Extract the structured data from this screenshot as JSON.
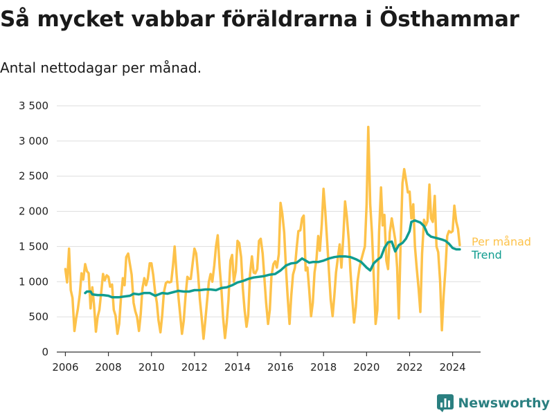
{
  "header": {
    "title": "Så mycket vabbar föräldrarna i Östhammar",
    "subtitle": "Antal nettodagar per månad."
  },
  "footer": {
    "brand": "Newsworthy",
    "brand_icon": "bar-chart-logo-icon"
  },
  "colors": {
    "monthly": "#fdc24a",
    "trend": "#109c8f",
    "grid": "#dddddd",
    "axis": "#333333",
    "brand": "#2a7f80"
  },
  "chart_data": {
    "type": "line",
    "title": "Så mycket vabbar föräldrarna i Östhammar",
    "subtitle": "Antal nettodagar per månad.",
    "xlabel": "",
    "ylabel": "",
    "xlim": [
      2005.6,
      2025.3
    ],
    "ylim": [
      0,
      3500
    ],
    "x_ticks": [
      2006,
      2008,
      2010,
      2012,
      2014,
      2016,
      2018,
      2020,
      2022,
      2024
    ],
    "x_tick_labels": [
      "2006",
      "2008",
      "2010",
      "2012",
      "2014",
      "2016",
      "2018",
      "2020",
      "2022",
      "2024"
    ],
    "y_ticks": [
      0,
      500,
      1000,
      1500,
      2000,
      2500,
      3000,
      3500
    ],
    "y_tick_labels": [
      "0",
      "500",
      "1 000",
      "1 500",
      "2 000",
      "2 500",
      "3 000",
      "3 500"
    ],
    "grid": true,
    "legend": "inline-right",
    "series": [
      {
        "name": "Per månad",
        "x": [
          2006.0,
          2006.08,
          2006.17,
          2006.25,
          2006.33,
          2006.42,
          2006.5,
          2006.58,
          2006.67,
          2006.75,
          2006.83,
          2006.92,
          2007.0,
          2007.08,
          2007.17,
          2007.25,
          2007.33,
          2007.42,
          2007.5,
          2007.58,
          2007.67,
          2007.75,
          2007.83,
          2007.92,
          2008.0,
          2008.08,
          2008.17,
          2008.25,
          2008.33,
          2008.42,
          2008.5,
          2008.58,
          2008.67,
          2008.75,
          2008.83,
          2008.92,
          2009.0,
          2009.08,
          2009.17,
          2009.25,
          2009.33,
          2009.42,
          2009.5,
          2009.58,
          2009.67,
          2009.75,
          2009.83,
          2009.92,
          2010.0,
          2010.08,
          2010.17,
          2010.25,
          2010.33,
          2010.42,
          2010.5,
          2010.58,
          2010.67,
          2010.75,
          2010.83,
          2010.92,
          2011.0,
          2011.08,
          2011.17,
          2011.25,
          2011.33,
          2011.42,
          2011.5,
          2011.58,
          2011.67,
          2011.75,
          2011.83,
          2011.92,
          2012.0,
          2012.08,
          2012.17,
          2012.25,
          2012.33,
          2012.42,
          2012.5,
          2012.58,
          2012.67,
          2012.75,
          2012.83,
          2012.92,
          2013.0,
          2013.08,
          2013.17,
          2013.25,
          2013.33,
          2013.42,
          2013.5,
          2013.58,
          2013.67,
          2013.75,
          2013.83,
          2013.92,
          2014.0,
          2014.08,
          2014.17,
          2014.25,
          2014.33,
          2014.42,
          2014.5,
          2014.58,
          2014.67,
          2014.75,
          2014.83,
          2014.92,
          2015.0,
          2015.08,
          2015.17,
          2015.25,
          2015.33,
          2015.42,
          2015.5,
          2015.58,
          2015.67,
          2015.75,
          2015.83,
          2015.92,
          2016.0,
          2016.08,
          2016.17,
          2016.25,
          2016.33,
          2016.42,
          2016.5,
          2016.58,
          2016.67,
          2016.75,
          2016.83,
          2016.92,
          2017.0,
          2017.08,
          2017.17,
          2017.25,
          2017.33,
          2017.42,
          2017.5,
          2017.58,
          2017.67,
          2017.75,
          2017.83,
          2017.92,
          2018.0,
          2018.08,
          2018.17,
          2018.25,
          2018.33,
          2018.42,
          2018.5,
          2018.58,
          2018.67,
          2018.75,
          2018.83,
          2018.92,
          2019.0,
          2019.08,
          2019.17,
          2019.25,
          2019.33,
          2019.42,
          2019.5,
          2019.58,
          2019.67,
          2019.75,
          2019.83,
          2019.92,
          2020.0,
          2020.08,
          2020.17,
          2020.25,
          2020.33,
          2020.42,
          2020.5,
          2020.58,
          2020.67,
          2020.75,
          2020.83,
          2020.92,
          2021.0,
          2021.08,
          2021.17,
          2021.25,
          2021.33,
          2021.42,
          2021.5,
          2021.58,
          2021.67,
          2021.75,
          2021.83,
          2021.92,
          2022.0,
          2022.08,
          2022.17,
          2022.25,
          2022.33,
          2022.42,
          2022.5,
          2022.58,
          2022.67,
          2022.75,
          2022.83,
          2022.92,
          2023.0,
          2023.08,
          2023.17,
          2023.25,
          2023.33,
          2023.42,
          2023.5,
          2023.58,
          2023.67,
          2023.75,
          2023.83,
          2023.92,
          2024.0,
          2024.08,
          2024.17,
          2024.25,
          2024.33
        ],
        "values": [
          1180,
          990,
          1470,
          880,
          770,
          300,
          480,
          610,
          820,
          1120,
          1030,
          1250,
          1150,
          1120,
          620,
          920,
          680,
          290,
          500,
          600,
          860,
          1110,
          1020,
          1090,
          1070,
          930,
          960,
          600,
          520,
          260,
          400,
          760,
          1050,
          950,
          1350,
          1400,
          1250,
          1100,
          700,
          580,
          500,
          300,
          540,
          900,
          1050,
          950,
          1040,
          1260,
          1260,
          1100,
          850,
          700,
          450,
          280,
          520,
          850,
          980,
          1000,
          990,
          1000,
          1230,
          1500,
          1100,
          800,
          550,
          260,
          440,
          780,
          1070,
          1040,
          1040,
          1270,
          1470,
          1400,
          1100,
          750,
          500,
          190,
          440,
          700,
          1000,
          1110,
          1000,
          1230,
          1500,
          1660,
          1200,
          900,
          500,
          200,
          420,
          740,
          1300,
          1380,
          1000,
          1150,
          1580,
          1550,
          1350,
          900,
          600,
          360,
          530,
          1100,
          1360,
          1130,
          1120,
          1180,
          1580,
          1610,
          1400,
          1050,
          700,
          400,
          600,
          1080,
          1250,
          1290,
          1200,
          1390,
          2120,
          1970,
          1700,
          1200,
          800,
          400,
          800,
          1100,
          1200,
          1480,
          1720,
          1730,
          1900,
          1940,
          1160,
          1200,
          900,
          510,
          700,
          1130,
          1320,
          1650,
          1440,
          1820,
          2320,
          2000,
          1560,
          1150,
          750,
          510,
          800,
          1130,
          1350,
          1530,
          1200,
          1650,
          2140,
          1930,
          1600,
          1140,
          800,
          420,
          640,
          1000,
          1200,
          1310,
          1400,
          1500,
          2100,
          3200,
          2100,
          1700,
          1100,
          400,
          600,
          1700,
          2340,
          1800,
          1950,
          1300,
          1180,
          1700,
          1900,
          1750,
          1600,
          1200,
          480,
          1500,
          2400,
          2600,
          2450,
          2270,
          2280,
          1900,
          2100,
          1500,
          1200,
          900,
          570,
          1400,
          1880,
          1800,
          1860,
          2380,
          1900,
          1850,
          2220,
          1500,
          1420,
          1000,
          310,
          800,
          1200,
          1650,
          1720,
          1700,
          1720,
          2080,
          1850,
          1750,
          1520
        ]
      },
      {
        "name": "Trend",
        "x": [
          2006.92,
          2007.0,
          2007.08,
          2007.17,
          2007.25,
          2007.5,
          2007.75,
          2008.0,
          2008.17,
          2008.5,
          2008.75,
          2009.0,
          2009.17,
          2009.42,
          2009.67,
          2009.92,
          2010.17,
          2010.5,
          2010.75,
          2011.0,
          2011.25,
          2011.5,
          2011.75,
          2012.0,
          2012.25,
          2012.5,
          2012.75,
          2013.0,
          2013.25,
          2013.5,
          2013.75,
          2014.0,
          2014.25,
          2014.5,
          2014.75,
          2015.0,
          2015.25,
          2015.5,
          2015.75,
          2016.0,
          2016.25,
          2016.5,
          2016.75,
          2017.0,
          2017.17,
          2017.33,
          2017.5,
          2017.75,
          2018.0,
          2018.25,
          2018.5,
          2018.75,
          2019.0,
          2019.25,
          2019.5,
          2019.75,
          2020.0,
          2020.17,
          2020.33,
          2020.5,
          2020.67,
          2020.83,
          2021.0,
          2021.17,
          2021.33,
          2021.5,
          2021.67,
          2021.83,
          2022.0,
          2022.08,
          2022.25,
          2022.5,
          2022.67,
          2022.83,
          2023.0,
          2023.25,
          2023.5,
          2023.67,
          2023.83,
          2024.0,
          2024.17,
          2024.33
        ],
        "values": [
          840,
          860,
          860,
          860,
          820,
          810,
          810,
          800,
          780,
          780,
          790,
          800,
          830,
          820,
          840,
          840,
          800,
          840,
          830,
          850,
          870,
          860,
          860,
          880,
          880,
          890,
          890,
          880,
          910,
          920,
          950,
          990,
          1010,
          1040,
          1060,
          1070,
          1080,
          1100,
          1110,
          1160,
          1230,
          1260,
          1270,
          1330,
          1300,
          1270,
          1280,
          1280,
          1300,
          1330,
          1350,
          1360,
          1360,
          1350,
          1320,
          1280,
          1200,
          1160,
          1260,
          1310,
          1350,
          1480,
          1560,
          1570,
          1430,
          1520,
          1550,
          1610,
          1720,
          1850,
          1870,
          1840,
          1790,
          1680,
          1640,
          1620,
          1600,
          1580,
          1540,
          1480,
          1460,
          1460
        ]
      }
    ]
  }
}
